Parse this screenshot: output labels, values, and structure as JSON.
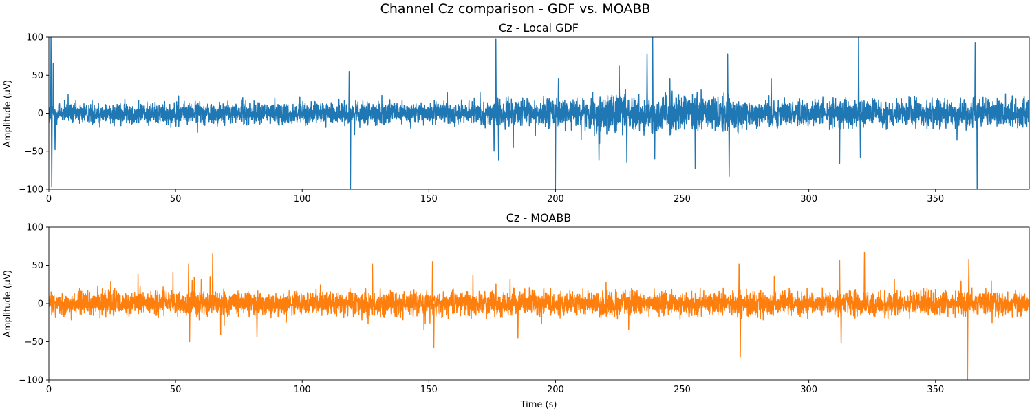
{
  "figure": {
    "suptitle": "Channel Cz comparison - GDF vs. MOABB"
  },
  "chart_data": [
    {
      "type": "line",
      "title": "Cz - Local GDF",
      "xlabel": "",
      "ylabel": "Amplitude (µV)",
      "xlim": [
        0,
        387
      ],
      "ylim": [
        -100,
        100
      ],
      "xticks": [
        0,
        50,
        100,
        150,
        200,
        250,
        300,
        350
      ],
      "yticks": [
        -100,
        -50,
        0,
        50,
        100
      ],
      "grid": false,
      "color": "#1f77b4",
      "noise": {
        "base_amplitude": 11,
        "segments": [
          {
            "from": 0,
            "to": 175,
            "amplitude": 11
          },
          {
            "from": 175,
            "to": 215,
            "amplitude": 14
          },
          {
            "from": 215,
            "to": 275,
            "amplitude": 19
          },
          {
            "from": 275,
            "to": 387,
            "amplitude": 14
          }
        ]
      },
      "peaks": [
        {
          "t": 0.7,
          "v": 100
        },
        {
          "t": 1.0,
          "v": -97
        },
        {
          "t": 1.6,
          "v": 66
        },
        {
          "t": 2.3,
          "v": -48
        },
        {
          "t": 118.4,
          "v": 55
        },
        {
          "t": 118.9,
          "v": -100
        },
        {
          "t": 175.6,
          "v": -50
        },
        {
          "t": 176.3,
          "v": 98
        },
        {
          "t": 177.4,
          "v": -62
        },
        {
          "t": 199.8,
          "v": -100
        },
        {
          "t": 201,
          "v": 45
        },
        {
          "t": 217,
          "v": -62
        },
        {
          "t": 225,
          "v": 62
        },
        {
          "t": 228,
          "v": -65
        },
        {
          "t": 236,
          "v": 78
        },
        {
          "t": 238.2,
          "v": 100
        },
        {
          "t": 239,
          "v": -60
        },
        {
          "t": 245,
          "v": 45
        },
        {
          "t": 255,
          "v": -73
        },
        {
          "t": 267.8,
          "v": 78
        },
        {
          "t": 268.4,
          "v": -83
        },
        {
          "t": 285,
          "v": 45
        },
        {
          "t": 312,
          "v": -66
        },
        {
          "t": 319.5,
          "v": 100
        },
        {
          "t": 320.2,
          "v": -58
        },
        {
          "t": 365.5,
          "v": 93
        },
        {
          "t": 366.3,
          "v": -100
        }
      ]
    },
    {
      "type": "line",
      "title": "Cz - MOABB",
      "xlabel": "Time (s)",
      "ylabel": "Amplitude (µV)",
      "xlim": [
        0,
        387
      ],
      "ylim": [
        -100,
        100
      ],
      "xticks": [
        0,
        50,
        100,
        150,
        200,
        250,
        300,
        350
      ],
      "yticks": [
        -100,
        -50,
        0,
        50,
        100
      ],
      "grid": false,
      "color": "#ff7f0e",
      "noise": {
        "base_amplitude": 12,
        "segments": [
          {
            "from": 0,
            "to": 387,
            "amplitude": 12
          }
        ]
      },
      "peaks": [
        {
          "t": 55,
          "v": 52
        },
        {
          "t": 55.4,
          "v": -50
        },
        {
          "t": 64.5,
          "v": 65
        },
        {
          "t": 82,
          "v": -43
        },
        {
          "t": 127.6,
          "v": 52
        },
        {
          "t": 151.3,
          "v": 55
        },
        {
          "t": 151.8,
          "v": -58
        },
        {
          "t": 185,
          "v": -45
        },
        {
          "t": 272.3,
          "v": 52
        },
        {
          "t": 272.8,
          "v": -70
        },
        {
          "t": 312,
          "v": 57
        },
        {
          "t": 312.6,
          "v": -52
        },
        {
          "t": 321.8,
          "v": 67
        },
        {
          "t": 362.5,
          "v": -100
        },
        {
          "t": 363,
          "v": 58
        }
      ]
    }
  ]
}
